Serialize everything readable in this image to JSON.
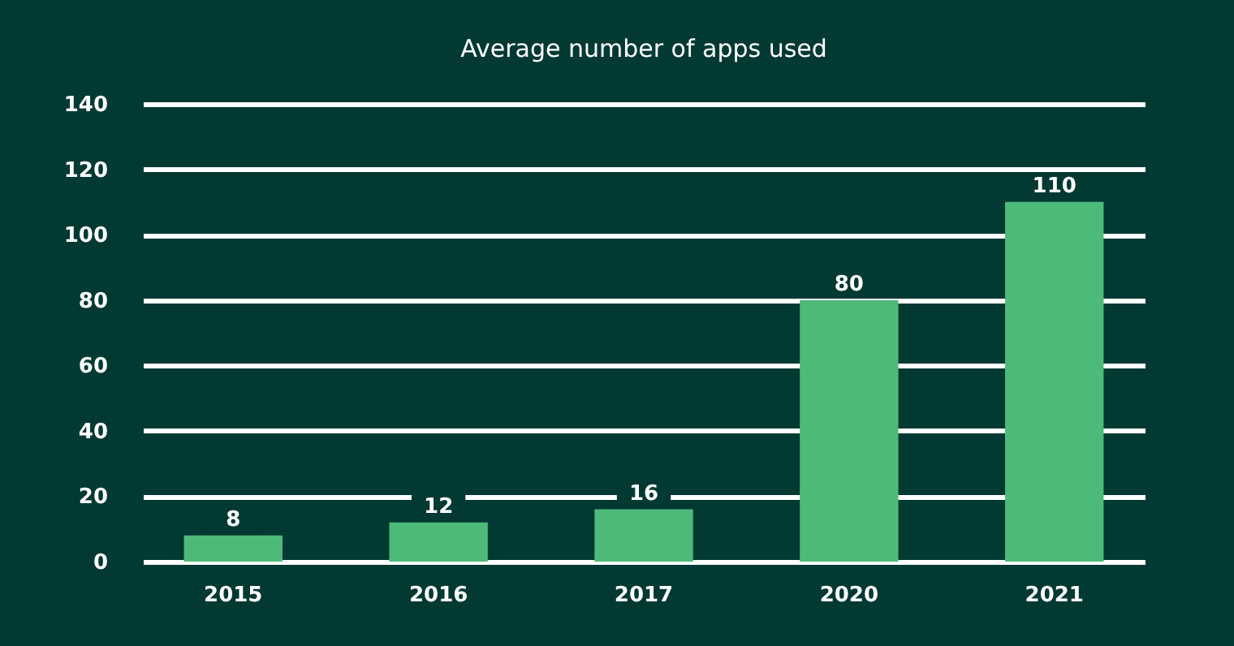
{
  "chart_data": {
    "type": "bar",
    "title": "Average number of apps used",
    "categories": [
      "2015",
      "2016",
      "2017",
      "2020",
      "2021"
    ],
    "values": [
      8,
      12,
      16,
      80,
      110
    ],
    "color": "#4dba7a",
    "ylim": [
      0,
      140
    ],
    "yticks": [
      0,
      20,
      40,
      60,
      80,
      100,
      120,
      140
    ],
    "grid": "y",
    "data_labels": true
  }
}
